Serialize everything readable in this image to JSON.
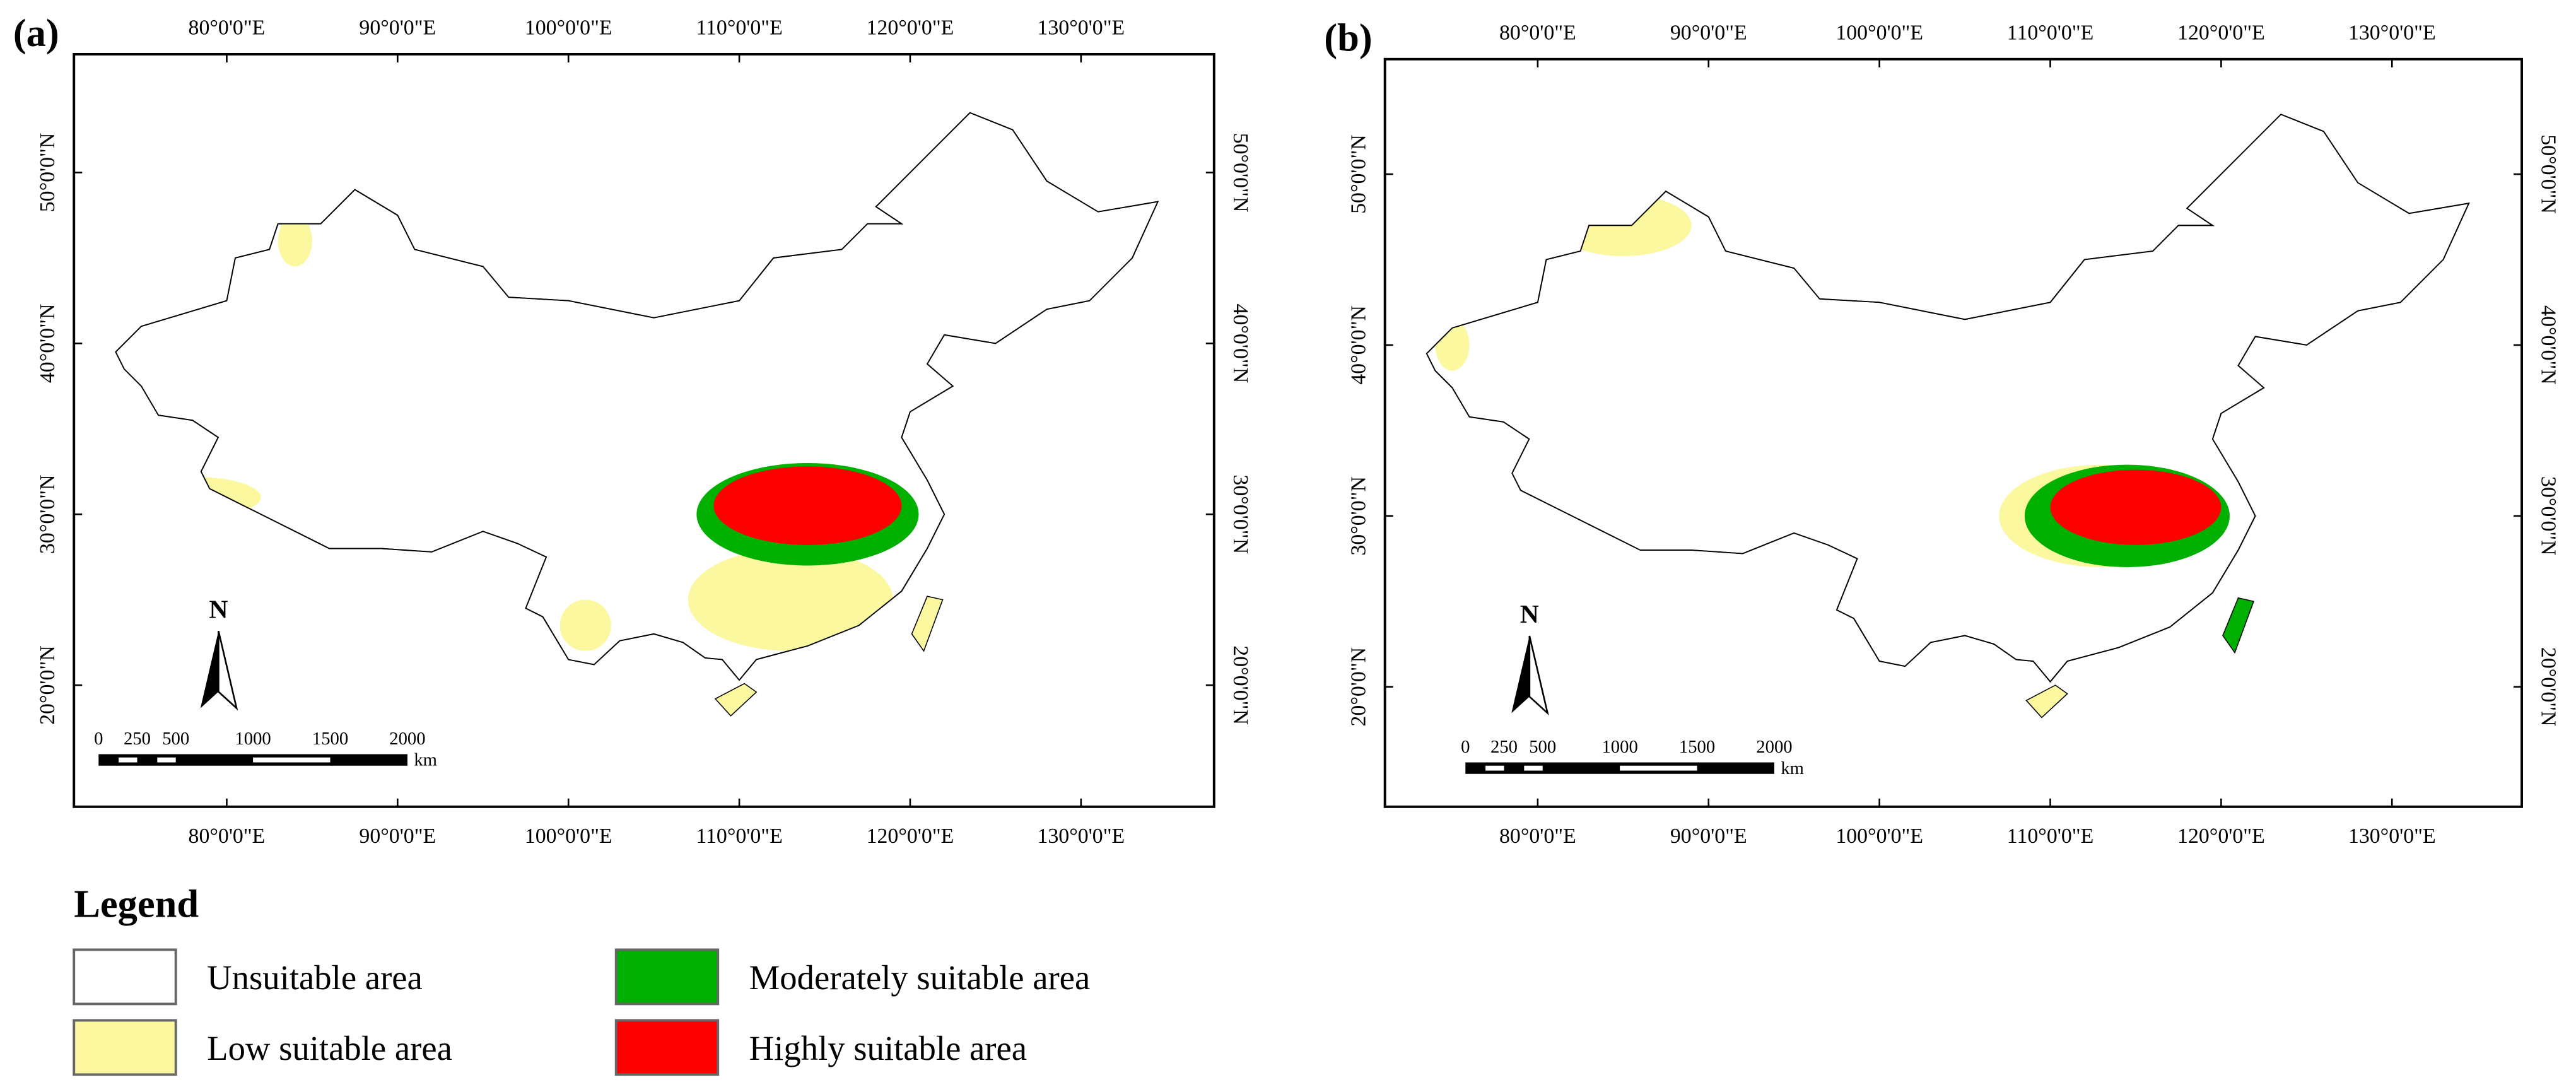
{
  "panels": [
    {
      "label": "(a)",
      "lon_labels": [
        "80°0'0\"E",
        "90°0'0\"E",
        "100°0'0\"E",
        "110°0'0\"E",
        "120°0'0\"E",
        "130°0'0\"E"
      ],
      "lat_labels": [
        "20°0'0\"N",
        "30°0'0\"N",
        "40°0'0\"N",
        "50°0'0\"N"
      ],
      "north": "N",
      "scale_labels": [
        "0",
        "250",
        "500",
        "1000",
        "1500",
        "2000"
      ],
      "scale_unit": "km"
    },
    {
      "label": "(b)",
      "lon_labels": [
        "80°0'0\"E",
        "90°0'0\"E",
        "100°0'0\"E",
        "110°0'0\"E",
        "120°0'0\"E",
        "130°0'0\"E"
      ],
      "lat_labels": [
        "20°0'0\"N",
        "30°0'0\"N",
        "40°0'0\"N",
        "50°0'0\"N"
      ],
      "north": "N",
      "scale_labels": [
        "0",
        "250",
        "500",
        "1000",
        "1500",
        "2000"
      ],
      "scale_unit": "km"
    }
  ],
  "legend": {
    "title": "Legend",
    "items": [
      {
        "label": "Unsuitable area",
        "color": "#ffffff"
      },
      {
        "label": "Low suitable area",
        "color": "#fbf8a0"
      },
      {
        "label": "Moderately suitable area",
        "color": "#00b000"
      },
      {
        "label": "Highly suitable area",
        "color": "#ff0000"
      }
    ]
  }
}
